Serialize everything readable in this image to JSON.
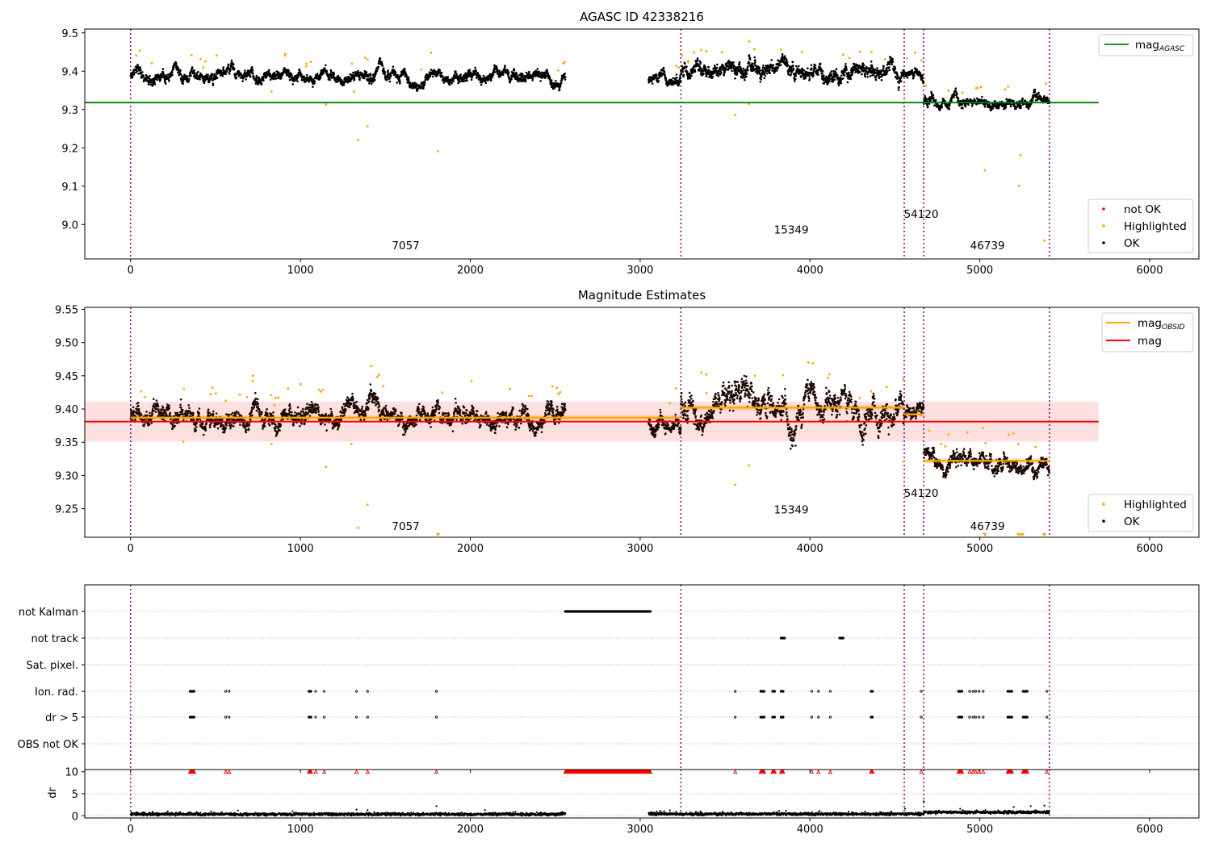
{
  "chart_data": [
    {
      "type": "scatter",
      "title": "AGASC ID 42338216",
      "xlim": [
        -270,
        6290
      ],
      "ylim": [
        8.91,
        9.51
      ],
      "xticks": [
        0,
        1000,
        2000,
        3000,
        4000,
        5000,
        6000
      ],
      "yticks": [
        9.0,
        9.1,
        9.2,
        9.3,
        9.4,
        9.5
      ],
      "ytick_labels": [
        "9.0",
        "9.1",
        "9.2",
        "9.3",
        "9.4",
        "9.5"
      ],
      "mag_agasc": 9.318,
      "mag_agasc_x_range": [
        -270,
        5700
      ],
      "obs_boundaries": [
        0,
        3240,
        4555,
        4670,
        5410
      ],
      "obs_labels": [
        {
          "text": "7057",
          "x": 1620,
          "y": 8.935
        },
        {
          "text": "15349",
          "x": 3890,
          "y": 8.976
        },
        {
          "text": "54120",
          "x": 4655,
          "y": 9.017
        },
        {
          "text": "46739",
          "x": 5045,
          "y": 8.935
        }
      ],
      "segments": [
        {
          "x": [
            0,
            2560
          ],
          "level": 9.388,
          "spread": 0.012
        },
        {
          "x": [
            3050,
            3240
          ],
          "level": 9.385,
          "spread": 0.012
        },
        {
          "x": [
            3240,
            4555
          ],
          "level": 9.402,
          "spread": 0.018
        },
        {
          "x": [
            4555,
            4670
          ],
          "level": 9.392,
          "spread": 0.01
        },
        {
          "x": [
            4670,
            5410
          ],
          "level": 9.322,
          "spread": 0.011
        }
      ],
      "highlighted_points": [
        [
          1340,
          9.221
        ],
        [
          1395,
          9.256
        ],
        [
          1150,
          9.313
        ],
        [
          830,
          9.347
        ],
        [
          1810,
          9.191
        ],
        [
          3560,
          9.286
        ],
        [
          3640,
          9.315
        ],
        [
          5030,
          9.141
        ],
        [
          5240,
          9.181
        ],
        [
          5230,
          9.101
        ],
        [
          5380,
          8.958
        ],
        [
          4550,
          9.317
        ],
        [
          1315,
          9.347
        ],
        [
          3360,
          9.455
        ],
        [
          3390,
          9.452
        ]
      ],
      "legend_line": {
        "label": "mag",
        "subscript": "AGASC",
        "color": "#008000"
      },
      "legend_points": [
        {
          "label": "not OK",
          "color": "#ff0000"
        },
        {
          "label": "Highlighted",
          "color": "#ffa500"
        },
        {
          "label": "OK",
          "color": "#000000"
        }
      ]
    },
    {
      "type": "scatter",
      "title": "Magnitude Estimates",
      "xlim": [
        -270,
        6290
      ],
      "ylim": [
        9.207,
        9.553
      ],
      "xticks": [
        0,
        1000,
        2000,
        3000,
        4000,
        5000,
        6000
      ],
      "yticks": [
        9.25,
        9.3,
        9.35,
        9.4,
        9.45,
        9.5,
        9.55
      ],
      "ytick_labels": [
        "9.25",
        "9.30",
        "9.35",
        "9.40",
        "9.45",
        "9.50",
        "9.55"
      ],
      "mag": 9.381,
      "mag_band": [
        9.351,
        9.411
      ],
      "mag_x_range": [
        -270,
        5700
      ],
      "obs_boundaries": [
        0,
        3240,
        4555,
        4670,
        5410
      ],
      "obs_labels": [
        {
          "text": "7057",
          "x": 1620,
          "y": 9.218
        },
        {
          "text": "15349",
          "x": 3890,
          "y": 9.243
        },
        {
          "text": "54120",
          "x": 4655,
          "y": 9.268
        },
        {
          "text": "46739",
          "x": 5045,
          "y": 9.218
        }
      ],
      "obsid_mags": [
        {
          "x": [
            0,
            3240
          ],
          "mag": 9.387
        },
        {
          "x": [
            3240,
            4555
          ],
          "mag": 9.402
        },
        {
          "x": [
            4555,
            4670
          ],
          "mag": 9.392
        },
        {
          "x": [
            4670,
            5410
          ],
          "mag": 9.322
        }
      ],
      "highlighted_points": [
        [
          1340,
          9.221
        ],
        [
          1395,
          9.256
        ],
        [
          1150,
          9.313
        ],
        [
          830,
          9.347
        ],
        [
          310,
          9.351
        ],
        [
          1300,
          9.347
        ],
        [
          3560,
          9.286
        ],
        [
          3640,
          9.315
        ],
        [
          4550,
          9.321
        ],
        [
          3360,
          9.455
        ],
        [
          3390,
          9.452
        ]
      ],
      "clipped_markers": [
        1810,
        5030,
        5230,
        5250,
        5380
      ],
      "legend_line": [
        {
          "label": "mag",
          "subscript": "OBSID",
          "color": "#ffa500"
        },
        {
          "label": "mag",
          "subscript": "",
          "color": "#ff0000"
        }
      ],
      "legend_points": [
        {
          "label": "Highlighted",
          "color": "#ffa500"
        },
        {
          "label": "OK",
          "color": "#000000"
        }
      ]
    },
    {
      "type": "scatter",
      "xlim": [
        -270,
        6290
      ],
      "flag_rows": [
        "not Kalman",
        "not track",
        "Sat. pixel.",
        "Ion. rad.",
        "dr > 5",
        "OBS not OK"
      ],
      "flag_points": {
        "not Kalman": [
          [
            2560,
            3060
          ]
        ],
        "not track": [
          [
            3830,
            3850
          ],
          [
            4175,
            4195
          ]
        ],
        "Sat. pixel.": [],
        "Ion. rad.": [
          [
            350,
            375
          ],
          560,
          580,
          [
            1050,
            1065
          ],
          1090,
          1140,
          1330,
          1395,
          1800,
          3560,
          [
            3710,
            3730
          ],
          [
            3780,
            3795
          ],
          [
            3830,
            3845
          ],
          4010,
          4050,
          4120,
          [
            4360,
            4370
          ],
          4655,
          [
            4875,
            4895
          ],
          4940,
          4960,
          4975,
          4995,
          5020,
          [
            5165,
            5190
          ],
          [
            5255,
            5280
          ],
          5395
        ],
        "dr > 5": [
          [
            350,
            375
          ],
          560,
          580,
          [
            1050,
            1065
          ],
          1090,
          1140,
          1330,
          1395,
          1800,
          3560,
          [
            3710,
            3730
          ],
          [
            3780,
            3795
          ],
          [
            3830,
            3845
          ],
          4010,
          4050,
          4120,
          [
            4360,
            4370
          ],
          4655,
          [
            4875,
            4895
          ],
          4940,
          4960,
          4975,
          4995,
          5020,
          [
            5165,
            5190
          ],
          [
            5255,
            5280
          ],
          5395
        ],
        "OBS not OK": []
      },
      "obs_boundaries": [
        0,
        3240,
        4555,
        4670,
        5410
      ],
      "xticks": [
        0,
        1000,
        2000,
        3000,
        4000,
        5000,
        6000
      ]
    },
    {
      "type": "scatter",
      "ylabel": "dr",
      "xlim": [
        -270,
        6290
      ],
      "ylim": [
        -0.5,
        10.5
      ],
      "yticks": [
        0,
        5,
        10
      ],
      "xticks": [
        0,
        1000,
        2000,
        3000,
        4000,
        5000,
        6000
      ],
      "dr_clip": 10,
      "dr_segments": [
        {
          "x": [
            0,
            2560
          ],
          "level": 0.35
        },
        {
          "x": [
            3050,
            4670
          ],
          "level": 0.4
        },
        {
          "x": [
            4670,
            5410
          ],
          "level": 0.8
        }
      ],
      "dr_outliers": [
        [
          1330,
          1.4
        ],
        [
          1395,
          1.3
        ],
        [
          1800,
          2.2
        ],
        [
          4560,
          1.6
        ],
        [
          4670,
          3.3
        ],
        [
          5200,
          2.0
        ],
        [
          5300,
          2.2
        ],
        [
          5380,
          2.3
        ]
      ],
      "obs_boundaries": [
        0,
        3240,
        4555,
        4670,
        5410
      ]
    }
  ]
}
